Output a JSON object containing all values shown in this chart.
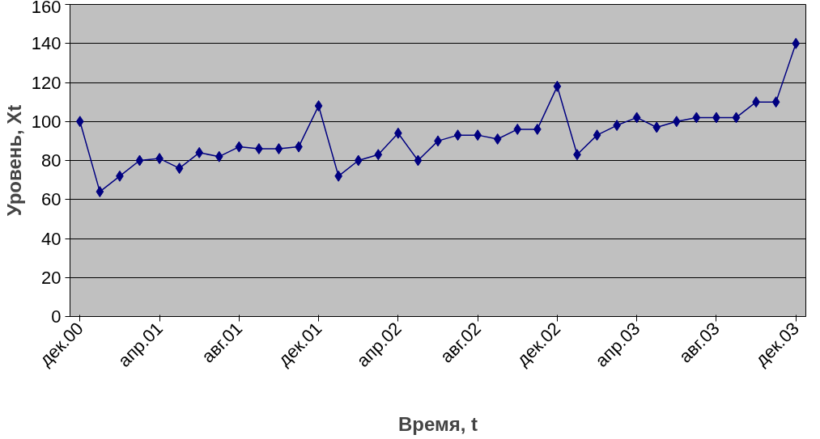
{
  "chart_data": {
    "type": "line",
    "xlabel": "Время, t",
    "ylabel": "Уровень, Xt",
    "categories": [
      "дек.00",
      null,
      null,
      null,
      "апр.01",
      null,
      null,
      null,
      "авг.01",
      null,
      null,
      null,
      "дек.01",
      null,
      null,
      null,
      "апр.02",
      null,
      null,
      null,
      "авг.02",
      null,
      null,
      null,
      "дек.02",
      null,
      null,
      null,
      "апр.03",
      null,
      null,
      null,
      "авг.03",
      null,
      null,
      null,
      "дек.03"
    ],
    "series": [
      {
        "color": "#000080",
        "values": [
          100,
          64,
          72,
          80,
          81,
          76,
          84,
          82,
          87,
          86,
          86,
          87,
          108,
          72,
          80,
          83,
          94,
          80,
          90,
          93,
          93,
          91,
          96,
          96,
          118,
          83,
          93,
          98,
          102,
          97,
          100,
          102,
          102,
          102,
          110,
          110,
          140
        ]
      }
    ],
    "ylim": [
      0,
      160
    ],
    "yticks": [
      0,
      20,
      40,
      60,
      80,
      100,
      120,
      140,
      160
    ],
    "grid": "y",
    "marker": "diamond",
    "line_style": "solid"
  }
}
